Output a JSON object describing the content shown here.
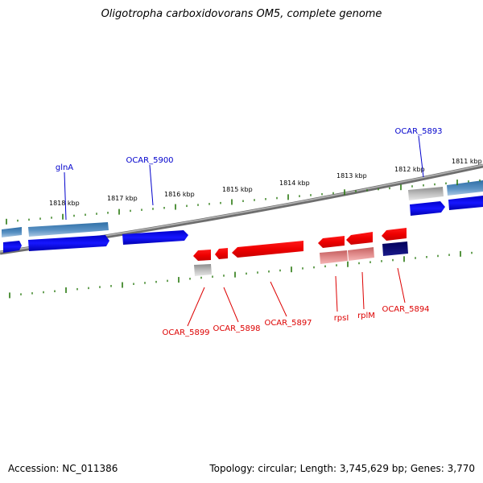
{
  "title": "Oligotropha carboxidovorans OM5, complete genome",
  "footer": {
    "accession": "Accession: NC_011386",
    "summary": "Topology: circular; Length: 3,745,629 bp; Genes: 3,770"
  },
  "colors": {
    "forward_label": "#0000cc",
    "reverse_label": "#dd0000",
    "ruler": "#2a7a10",
    "backbone": "#808080"
  },
  "scale": {
    "unit": "kbp",
    "ticks": [
      {
        "label": "1818 kbp",
        "kbp": 1818
      },
      {
        "label": "1817 kbp",
        "kbp": 1817
      },
      {
        "label": "1816 kbp",
        "kbp": 1816
      },
      {
        "label": "1815 kbp",
        "kbp": 1815
      },
      {
        "label": "1814 kbp",
        "kbp": 1814
      },
      {
        "label": "1813 kbp",
        "kbp": 1813
      },
      {
        "label": "1812 kbp",
        "kbp": 1812
      },
      {
        "label": "1811 kbp",
        "kbp": 1811
      }
    ]
  },
  "labels": {
    "forward": [
      {
        "text": "glnA"
      },
      {
        "text": "OCAR_5900"
      },
      {
        "text": "OCAR_5893"
      }
    ],
    "reverse": [
      {
        "text": "OCAR_5899"
      },
      {
        "text": "OCAR_5898"
      },
      {
        "text": "OCAR_5897"
      },
      {
        "text": "rpsI"
      },
      {
        "text": "rplM"
      },
      {
        "text": "OCAR_5894"
      }
    ]
  }
}
